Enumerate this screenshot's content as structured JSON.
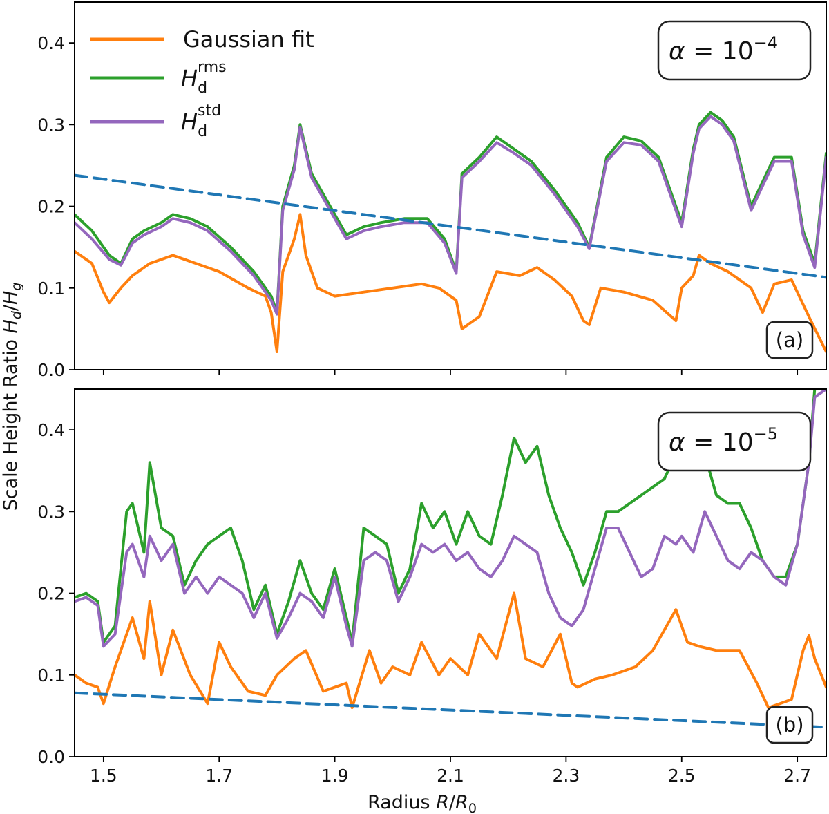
{
  "figure": {
    "ylabel": "Scale Height Ratio H_d/H_g",
    "xlabel": "Radius R/R_0"
  },
  "legend": {
    "items": [
      {
        "label": "Gaussian fit",
        "color": "#ff7f0e"
      },
      {
        "label": "H_d^rms",
        "color": "#2ca02c"
      },
      {
        "label": "H_d^std",
        "color": "#9467bd"
      }
    ]
  },
  "colors": {
    "gaussian": "#ff7f0e",
    "rms": "#2ca02c",
    "std": "#9467bd",
    "reference": "#1f77b4"
  },
  "chart_data": [
    {
      "type": "line",
      "panel_label": "(a)",
      "annotation": "α = 10^−4",
      "xlabel": "",
      "ylabel": "Scale Height Ratio H_d/H_g",
      "xlim": [
        1.45,
        2.75
      ],
      "ylim": [
        0.0,
        0.45
      ],
      "xticks": [
        "1.5",
        "1.7",
        "1.9",
        "2.1",
        "2.3",
        "2.5",
        "2.7"
      ],
      "yticks": [
        "0.0",
        "0.1",
        "0.2",
        "0.3",
        "0.4"
      ],
      "legend_position": "top-left",
      "series": [
        {
          "name": "Gaussian fit",
          "key": "gaussian",
          "dashed": false,
          "x": [
            1.45,
            1.48,
            1.5,
            1.51,
            1.53,
            1.55,
            1.58,
            1.62,
            1.66,
            1.7,
            1.75,
            1.78,
            1.79,
            1.8,
            1.81,
            1.83,
            1.84,
            1.85,
            1.87,
            1.9,
            1.95,
            2.0,
            2.05,
            2.08,
            2.11,
            2.12,
            2.15,
            2.18,
            2.22,
            2.25,
            2.28,
            2.31,
            2.33,
            2.34,
            2.36,
            2.4,
            2.45,
            2.49,
            2.5,
            2.52,
            2.53,
            2.55,
            2.58,
            2.62,
            2.64,
            2.66,
            2.69,
            2.72,
            2.75
          ],
          "y": [
            0.145,
            0.13,
            0.095,
            0.082,
            0.1,
            0.115,
            0.13,
            0.14,
            0.13,
            0.12,
            0.1,
            0.09,
            0.07,
            0.022,
            0.12,
            0.16,
            0.19,
            0.14,
            0.1,
            0.09,
            0.095,
            0.1,
            0.105,
            0.1,
            0.085,
            0.05,
            0.065,
            0.12,
            0.115,
            0.125,
            0.11,
            0.09,
            0.06,
            0.055,
            0.1,
            0.095,
            0.085,
            0.06,
            0.1,
            0.115,
            0.14,
            0.13,
            0.12,
            0.1,
            0.07,
            0.105,
            0.11,
            0.065,
            0.022
          ]
        },
        {
          "name": "H_d^rms",
          "key": "rms",
          "dashed": false,
          "x": [
            1.45,
            1.48,
            1.51,
            1.53,
            1.55,
            1.57,
            1.6,
            1.62,
            1.65,
            1.68,
            1.72,
            1.76,
            1.79,
            1.8,
            1.81,
            1.83,
            1.84,
            1.86,
            1.9,
            1.92,
            1.95,
            1.98,
            2.02,
            2.06,
            2.09,
            2.11,
            2.12,
            2.15,
            2.18,
            2.21,
            2.24,
            2.28,
            2.32,
            2.34,
            2.37,
            2.4,
            2.43,
            2.46,
            2.49,
            2.5,
            2.52,
            2.53,
            2.55,
            2.57,
            2.59,
            2.62,
            2.64,
            2.66,
            2.69,
            2.71,
            2.73,
            2.75
          ],
          "y": [
            0.19,
            0.17,
            0.14,
            0.13,
            0.16,
            0.17,
            0.18,
            0.19,
            0.185,
            0.175,
            0.15,
            0.12,
            0.09,
            0.07,
            0.2,
            0.25,
            0.3,
            0.24,
            0.19,
            0.165,
            0.175,
            0.18,
            0.185,
            0.185,
            0.16,
            0.12,
            0.24,
            0.26,
            0.285,
            0.27,
            0.255,
            0.22,
            0.18,
            0.15,
            0.26,
            0.285,
            0.28,
            0.26,
            0.2,
            0.18,
            0.27,
            0.3,
            0.315,
            0.305,
            0.285,
            0.2,
            0.23,
            0.26,
            0.26,
            0.17,
            0.13,
            0.265
          ]
        },
        {
          "name": "H_d^std",
          "key": "std",
          "dashed": false,
          "x": [
            1.45,
            1.48,
            1.51,
            1.53,
            1.55,
            1.57,
            1.6,
            1.62,
            1.65,
            1.68,
            1.72,
            1.76,
            1.79,
            1.8,
            1.81,
            1.83,
            1.84,
            1.86,
            1.9,
            1.92,
            1.95,
            1.98,
            2.02,
            2.06,
            2.09,
            2.11,
            2.12,
            2.15,
            2.18,
            2.21,
            2.24,
            2.28,
            2.32,
            2.34,
            2.37,
            2.4,
            2.43,
            2.46,
            2.49,
            2.5,
            2.52,
            2.53,
            2.55,
            2.57,
            2.59,
            2.62,
            2.64,
            2.66,
            2.69,
            2.71,
            2.73,
            2.75
          ],
          "y": [
            0.18,
            0.16,
            0.135,
            0.128,
            0.155,
            0.165,
            0.175,
            0.185,
            0.18,
            0.17,
            0.145,
            0.115,
            0.085,
            0.068,
            0.195,
            0.245,
            0.297,
            0.235,
            0.185,
            0.16,
            0.17,
            0.175,
            0.18,
            0.18,
            0.155,
            0.118,
            0.235,
            0.255,
            0.278,
            0.265,
            0.25,
            0.215,
            0.175,
            0.148,
            0.255,
            0.278,
            0.275,
            0.255,
            0.195,
            0.175,
            0.265,
            0.295,
            0.31,
            0.3,
            0.28,
            0.195,
            0.225,
            0.255,
            0.255,
            0.165,
            0.125,
            0.26
          ]
        },
        {
          "name": "",
          "key": "reference",
          "dashed": true,
          "x": [
            1.45,
            2.75
          ],
          "y": [
            0.238,
            0.113
          ]
        }
      ]
    },
    {
      "type": "line",
      "panel_label": "(b)",
      "annotation": "α = 10^−5",
      "xlabel": "Radius R/R_0",
      "ylabel": "Scale Height Ratio H_d/H_g",
      "xlim": [
        1.45,
        2.75
      ],
      "ylim": [
        0.0,
        0.45
      ],
      "xticks": [
        "1.5",
        "1.7",
        "1.9",
        "2.1",
        "2.3",
        "2.5",
        "2.7"
      ],
      "yticks": [
        "0.0",
        "0.1",
        "0.2",
        "0.3",
        "0.4"
      ],
      "series": [
        {
          "name": "Gaussian fit",
          "key": "gaussian",
          "dashed": false,
          "x": [
            1.45,
            1.47,
            1.49,
            1.5,
            1.52,
            1.53,
            1.55,
            1.57,
            1.58,
            1.6,
            1.62,
            1.65,
            1.68,
            1.7,
            1.72,
            1.75,
            1.78,
            1.8,
            1.83,
            1.85,
            1.88,
            1.9,
            1.92,
            1.93,
            1.96,
            1.98,
            2.0,
            2.03,
            2.05,
            2.08,
            2.1,
            2.13,
            2.15,
            2.18,
            2.21,
            2.23,
            2.26,
            2.29,
            2.31,
            2.32,
            2.35,
            2.38,
            2.42,
            2.45,
            2.49,
            2.51,
            2.53,
            2.56,
            2.6,
            2.63,
            2.65,
            2.67,
            2.69,
            2.71,
            2.72,
            2.73,
            2.75
          ],
          "y": [
            0.1,
            0.09,
            0.085,
            0.065,
            0.11,
            0.13,
            0.17,
            0.12,
            0.19,
            0.1,
            0.155,
            0.1,
            0.065,
            0.14,
            0.11,
            0.08,
            0.075,
            0.1,
            0.12,
            0.13,
            0.08,
            0.085,
            0.09,
            0.06,
            0.13,
            0.09,
            0.11,
            0.1,
            0.14,
            0.1,
            0.12,
            0.1,
            0.15,
            0.12,
            0.2,
            0.12,
            0.11,
            0.15,
            0.09,
            0.085,
            0.095,
            0.1,
            0.11,
            0.13,
            0.18,
            0.14,
            0.135,
            0.13,
            0.13,
            0.09,
            0.06,
            0.065,
            0.07,
            0.13,
            0.148,
            0.12,
            0.085
          ]
        },
        {
          "name": "H_d^rms",
          "key": "rms",
          "dashed": false,
          "x": [
            1.45,
            1.47,
            1.49,
            1.5,
            1.52,
            1.54,
            1.55,
            1.57,
            1.58,
            1.6,
            1.62,
            1.64,
            1.66,
            1.68,
            1.7,
            1.72,
            1.74,
            1.76,
            1.78,
            1.8,
            1.82,
            1.84,
            1.86,
            1.88,
            1.9,
            1.92,
            1.93,
            1.95,
            1.97,
            1.99,
            2.01,
            2.03,
            2.05,
            2.07,
            2.09,
            2.11,
            2.13,
            2.15,
            2.17,
            2.19,
            2.21,
            2.23,
            2.25,
            2.27,
            2.29,
            2.31,
            2.33,
            2.35,
            2.37,
            2.39,
            2.41,
            2.43,
            2.45,
            2.47,
            2.49,
            2.5,
            2.52,
            2.54,
            2.56,
            2.58,
            2.6,
            2.62,
            2.64,
            2.66,
            2.68,
            2.7,
            2.72,
            2.73,
            2.75
          ],
          "y": [
            0.195,
            0.2,
            0.19,
            0.14,
            0.16,
            0.3,
            0.31,
            0.25,
            0.36,
            0.28,
            0.27,
            0.21,
            0.24,
            0.26,
            0.27,
            0.28,
            0.24,
            0.18,
            0.21,
            0.15,
            0.19,
            0.24,
            0.2,
            0.18,
            0.23,
            0.17,
            0.14,
            0.28,
            0.27,
            0.26,
            0.2,
            0.23,
            0.31,
            0.28,
            0.3,
            0.26,
            0.3,
            0.27,
            0.26,
            0.32,
            0.39,
            0.36,
            0.38,
            0.32,
            0.28,
            0.25,
            0.21,
            0.25,
            0.3,
            0.3,
            0.31,
            0.32,
            0.33,
            0.34,
            0.37,
            0.39,
            0.36,
            0.37,
            0.32,
            0.31,
            0.31,
            0.28,
            0.24,
            0.22,
            0.22,
            0.26,
            0.36,
            0.45,
            0.45
          ]
        },
        {
          "name": "H_d^std",
          "key": "std",
          "dashed": false,
          "x": [
            1.45,
            1.47,
            1.49,
            1.5,
            1.52,
            1.54,
            1.55,
            1.57,
            1.58,
            1.6,
            1.62,
            1.64,
            1.66,
            1.68,
            1.7,
            1.72,
            1.74,
            1.76,
            1.78,
            1.8,
            1.82,
            1.84,
            1.86,
            1.88,
            1.9,
            1.92,
            1.93,
            1.95,
            1.97,
            1.99,
            2.01,
            2.03,
            2.05,
            2.07,
            2.09,
            2.11,
            2.13,
            2.15,
            2.17,
            2.19,
            2.21,
            2.23,
            2.25,
            2.27,
            2.29,
            2.31,
            2.33,
            2.35,
            2.37,
            2.39,
            2.41,
            2.43,
            2.45,
            2.47,
            2.49,
            2.5,
            2.52,
            2.54,
            2.56,
            2.58,
            2.6,
            2.62,
            2.64,
            2.66,
            2.68,
            2.7,
            2.72,
            2.73,
            2.75
          ],
          "y": [
            0.19,
            0.195,
            0.185,
            0.135,
            0.15,
            0.25,
            0.26,
            0.22,
            0.27,
            0.24,
            0.26,
            0.2,
            0.22,
            0.2,
            0.22,
            0.21,
            0.2,
            0.17,
            0.2,
            0.145,
            0.17,
            0.2,
            0.19,
            0.17,
            0.22,
            0.16,
            0.135,
            0.24,
            0.25,
            0.24,
            0.19,
            0.22,
            0.26,
            0.25,
            0.26,
            0.24,
            0.25,
            0.23,
            0.22,
            0.24,
            0.27,
            0.26,
            0.25,
            0.2,
            0.17,
            0.16,
            0.18,
            0.23,
            0.28,
            0.28,
            0.25,
            0.22,
            0.23,
            0.27,
            0.26,
            0.27,
            0.25,
            0.3,
            0.27,
            0.24,
            0.23,
            0.25,
            0.24,
            0.22,
            0.21,
            0.26,
            0.36,
            0.44,
            0.45
          ]
        },
        {
          "name": "",
          "key": "reference",
          "dashed": true,
          "x": [
            1.45,
            2.75
          ],
          "y": [
            0.078,
            0.036
          ]
        }
      ]
    }
  ]
}
